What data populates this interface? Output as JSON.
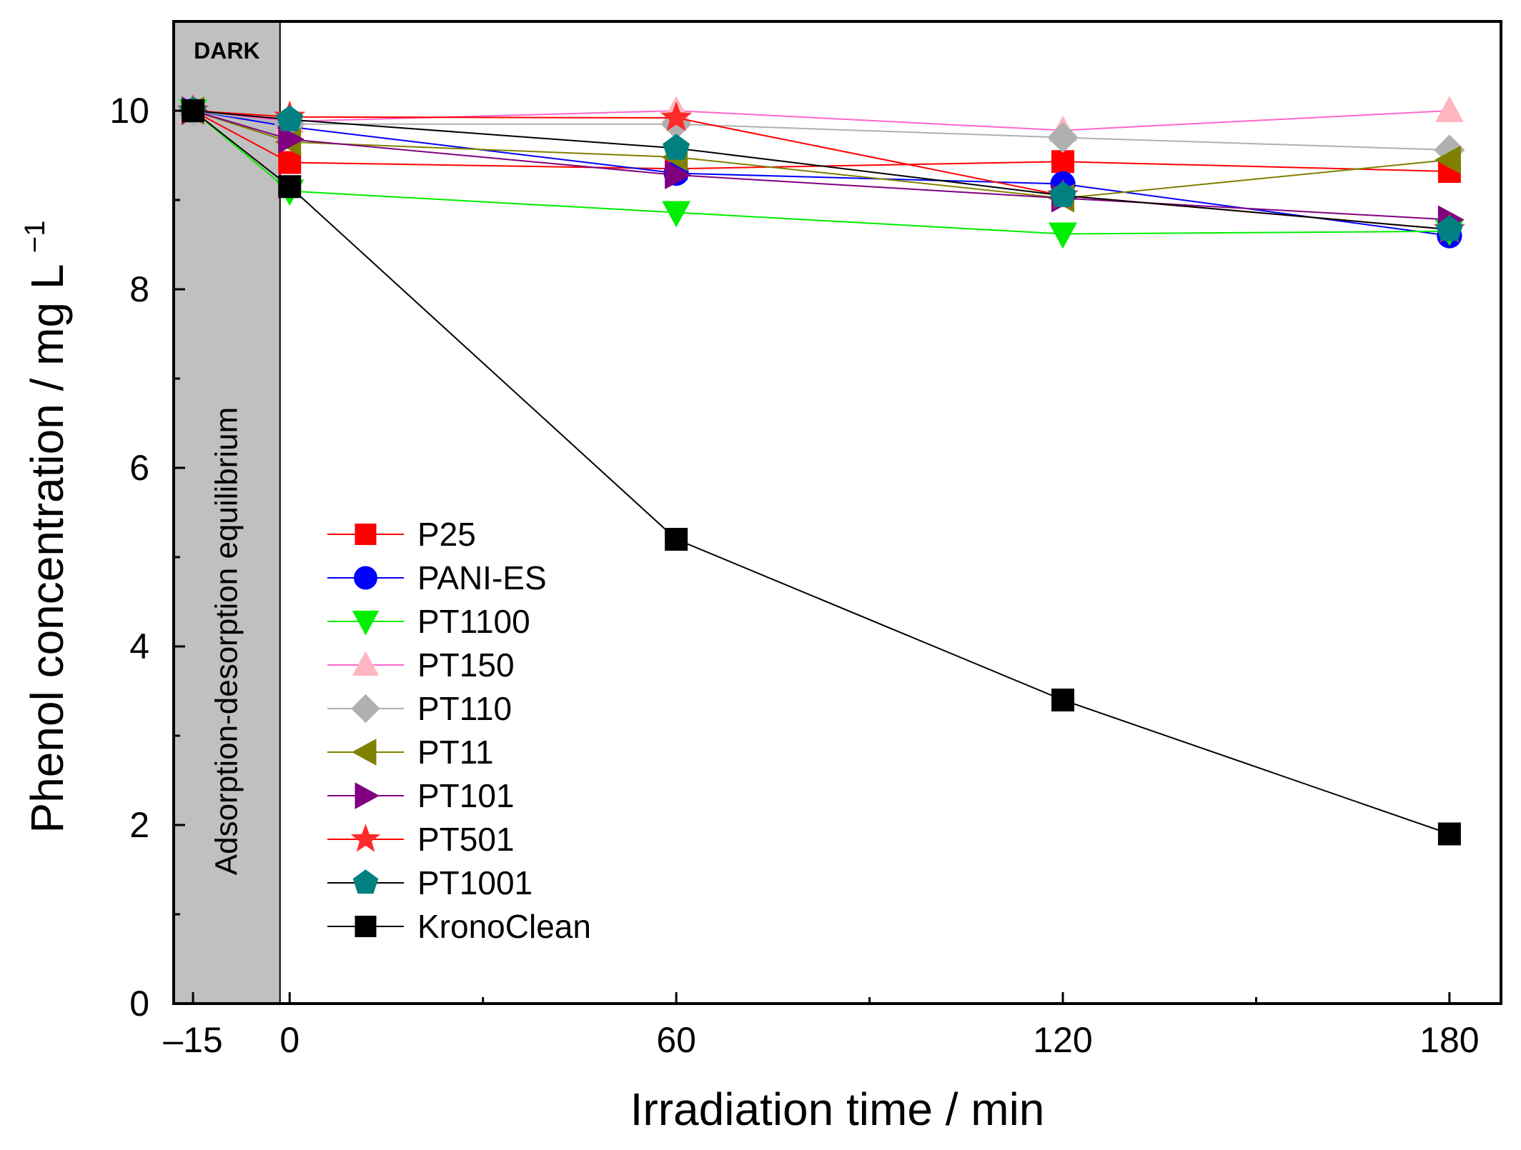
{
  "chart_data": {
    "type": "line",
    "title": "",
    "xlabel": "Irradiation time / min",
    "ylabel": "Phenol concentration / mg L",
    "ylabel_sup": "−1",
    "xlim": [
      -18,
      188
    ],
    "ylim": [
      0,
      11
    ],
    "x_ticks": [
      -15,
      0,
      60,
      120,
      180
    ],
    "x_tick_labels": [
      "–15",
      "0",
      "60",
      "120",
      "180"
    ],
    "x_minor_ticks": [
      30,
      90,
      150
    ],
    "y_ticks": [
      0,
      2,
      4,
      6,
      8,
      10
    ],
    "y_tick_labels": [
      "0",
      "2",
      "4",
      "6",
      "8",
      "10"
    ],
    "y_minor_ticks": [
      1,
      3,
      5,
      7,
      9
    ],
    "dark_region": {
      "from": -18,
      "to": -1.5,
      "label": "DARK",
      "text": "Adsorption-desorption equilibrium",
      "color": "#c0c0c0"
    },
    "legend": "middle-left",
    "x": [
      -15,
      0,
      60,
      120,
      180
    ],
    "series": [
      {
        "name": "P25",
        "marker": "square",
        "color": "#ff0000",
        "values": [
          10.0,
          9.42,
          9.35,
          9.43,
          9.32
        ]
      },
      {
        "name": "PANI-ES",
        "marker": "circle",
        "color": "#0000ff",
        "values": [
          10.0,
          9.82,
          9.3,
          9.18,
          8.6
        ]
      },
      {
        "name": "PT1100",
        "marker": "triangle-down",
        "color": "#00ee00",
        "values": [
          10.0,
          9.1,
          8.86,
          8.62,
          8.65
        ]
      },
      {
        "name": "PT150",
        "marker": "triangle-up",
        "color": "#ff66cc",
        "marker_color": "#ffb6c1",
        "values": [
          10.0,
          9.88,
          10.0,
          9.78,
          10.0
        ]
      },
      {
        "name": "PT110",
        "marker": "diamond",
        "color": "#b0b0b0",
        "values": [
          10.0,
          9.85,
          9.85,
          9.7,
          9.56
        ]
      },
      {
        "name": "PT11",
        "marker": "triangle-left",
        "color": "#808000",
        "values": [
          10.0,
          9.65,
          9.48,
          9.02,
          9.45
        ]
      },
      {
        "name": "PT101",
        "marker": "triangle-right",
        "color": "#800080",
        "values": [
          10.0,
          9.68,
          9.28,
          9.02,
          8.78
        ]
      },
      {
        "name": "PT501",
        "marker": "star",
        "color": "#ff0000",
        "marker_color": "#ff2a2a",
        "values": [
          10.0,
          9.93,
          9.92,
          9.05,
          8.67
        ]
      },
      {
        "name": "PT1001",
        "marker": "pentagon",
        "color": "#000000",
        "marker_color": "#008080",
        "values": [
          10.0,
          9.9,
          9.58,
          9.05,
          8.67
        ]
      },
      {
        "name": "KronoClean",
        "marker": "square",
        "color": "#000000",
        "values": [
          10.0,
          9.15,
          5.2,
          3.4,
          1.9
        ]
      }
    ]
  }
}
